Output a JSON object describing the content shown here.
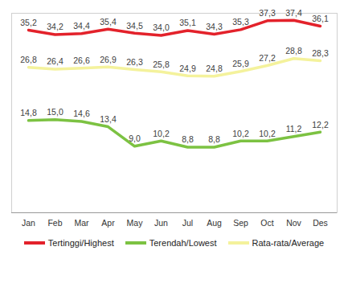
{
  "chart_data": {
    "type": "line",
    "categories": [
      "Jan",
      "Feb",
      "Mar",
      "Apr",
      "May",
      "Jun",
      "Jul",
      "Aug",
      "Sep",
      "Oct",
      "Nov",
      "Des"
    ],
    "series": [
      {
        "name": "Tertinggi/Highest",
        "color": "#e3222b",
        "values": [
          35.2,
          34.2,
          34.4,
          35.4,
          34.5,
          34.0,
          35.1,
          34.3,
          35.3,
          37.3,
          37.4,
          36.1
        ],
        "value_labels": [
          "35,2",
          "34,2",
          "34,4",
          "35,4",
          "34,5",
          "34,0",
          "35,1",
          "34,3",
          "35,3",
          "37,3",
          "37,4",
          "36,1"
        ]
      },
      {
        "name": "Terendah/Lowest",
        "color": "#7cc242",
        "values": [
          14.8,
          15.0,
          14.6,
          13.4,
          9.0,
          10.2,
          8.8,
          8.8,
          10.2,
          10.2,
          11.2,
          12.2
        ],
        "value_labels": [
          "14,8",
          "15,0",
          "14,6",
          "13,4",
          "9,0",
          "10,2",
          "8,8",
          "8,8",
          "10,2",
          "10,2",
          "11,2",
          "12,2"
        ]
      },
      {
        "name": "Rata-rata/Average",
        "color": "#f4f29c",
        "values": [
          26.8,
          26.4,
          26.6,
          26.9,
          26.3,
          25.8,
          24.9,
          24.8,
          25.9,
          27.2,
          28.8,
          28.3
        ],
        "value_labels": [
          "26,8",
          "26,4",
          "26,6",
          "26,9",
          "26,3",
          "25,8",
          "24,9",
          "24,8",
          "25,9",
          "27,2",
          "28,8",
          "28,3"
        ]
      }
    ],
    "ylim": [
      -6,
      39
    ],
    "tick_labels": "x",
    "data_labels": true,
    "legend": "bottom"
  }
}
